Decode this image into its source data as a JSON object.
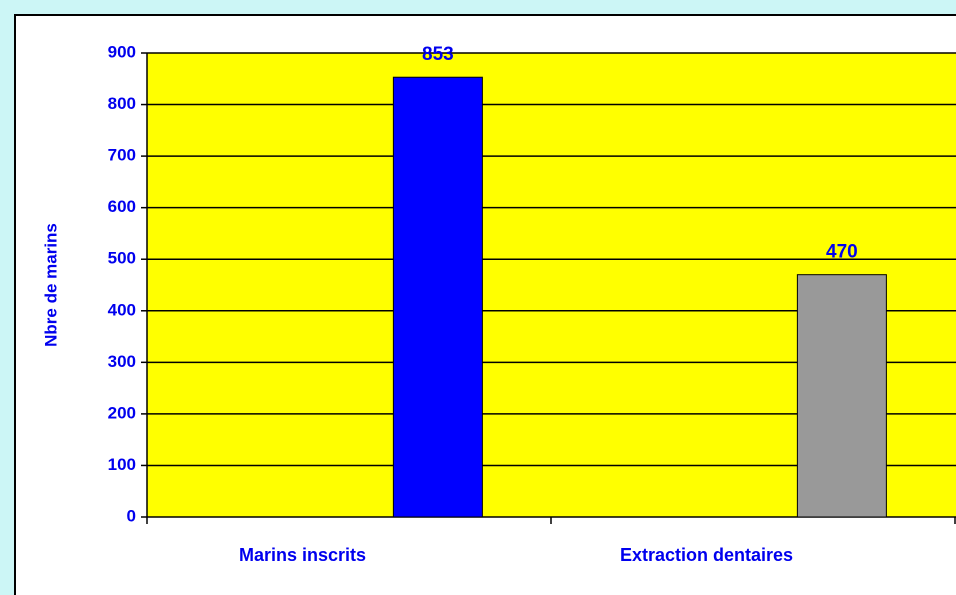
{
  "chart_data": {
    "type": "bar",
    "y_label": "Nbre de marins",
    "categories": [
      "Marins inscrits",
      "Extraction dentaires"
    ],
    "values": [
      853,
      470
    ],
    "colors": [
      "#0000ff",
      "#999999"
    ],
    "ylim": [
      0,
      900
    ],
    "yticks": [
      0,
      100,
      200,
      300,
      400,
      500,
      600,
      700,
      800,
      900
    ],
    "grid": true,
    "plot_background": "#ffff00"
  }
}
